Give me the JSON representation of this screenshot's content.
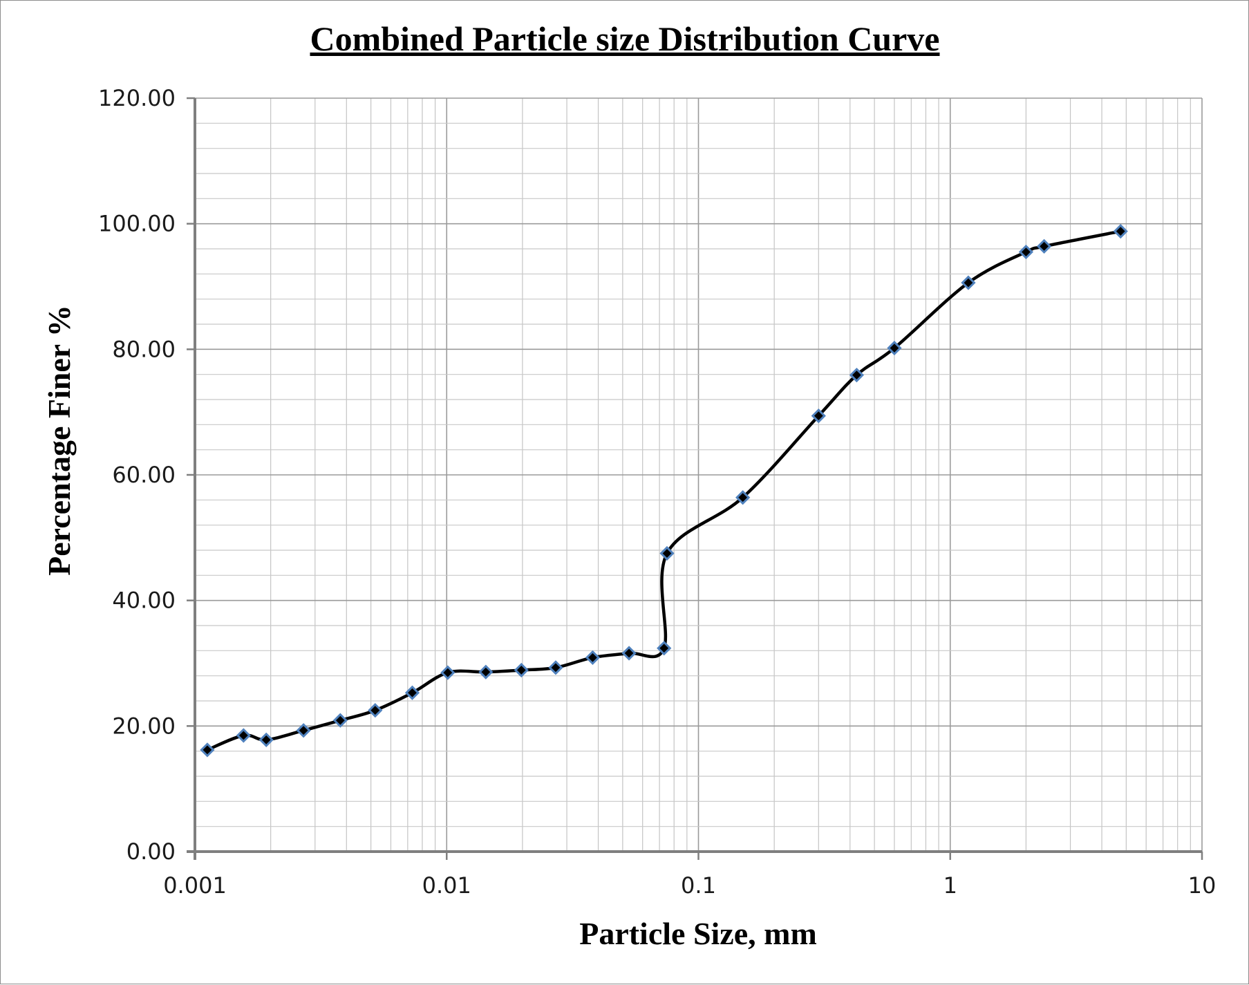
{
  "chart_data": {
    "type": "scatter",
    "title": "Combined Particle size Distribution Curve",
    "xlabel": "Particle Size, mm",
    "ylabel": "Percentage Finer %",
    "x_scale": "log",
    "xlim": [
      0.001,
      10
    ],
    "ylim": [
      0,
      120
    ],
    "x_ticks": [
      0.001,
      0.01,
      0.1,
      1,
      10
    ],
    "x_tick_labels": [
      "0.001",
      "0.01",
      "0.1",
      "1",
      "10"
    ],
    "y_ticks": [
      0,
      20,
      40,
      60,
      80,
      100,
      120
    ],
    "y_tick_labels": [
      "0.00",
      "20.00",
      "40.00",
      "60.00",
      "80.00",
      "100.00",
      "120.00"
    ],
    "grid": true,
    "legend": "none",
    "line_style": "smoothed line with diamond markers",
    "line_color": "#000000",
    "marker_fill": "#000000",
    "marker_edge": "#4f81bd",
    "series": [
      {
        "x": [
          0.00112,
          0.00156,
          0.00192,
          0.0027,
          0.00378,
          0.0052,
          0.0073,
          0.0101,
          0.0143,
          0.0198,
          0.0271,
          0.038,
          0.053,
          0.073,
          0.075,
          0.15,
          0.3,
          0.425,
          0.6,
          1.18,
          2.0,
          2.36,
          4.75
        ],
        "y": [
          16.2,
          18.5,
          17.8,
          19.3,
          20.9,
          22.5,
          25.3,
          28.5,
          28.6,
          28.9,
          29.3,
          30.9,
          31.6,
          32.4,
          47.5,
          56.4,
          69.4,
          75.9,
          80.2,
          90.6,
          95.5,
          96.4,
          98.8
        ]
      }
    ]
  }
}
